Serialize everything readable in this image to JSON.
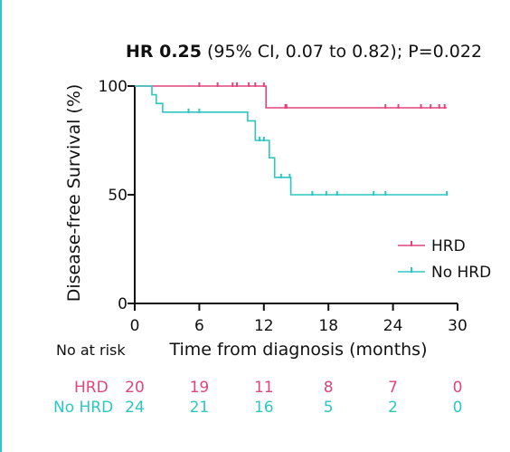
{
  "chart_data": {
    "type": "line",
    "subtype": "kaplan-meier",
    "title": {
      "bold": "HR 0.25",
      "rest": " (95% CI, 0.07 to 0.82); P=0.022"
    },
    "xlabel": "Time from diagnosis (months)",
    "ylabel": "Disease-free Survival (%)",
    "xlim": [
      0,
      30
    ],
    "ylim": [
      0,
      100
    ],
    "x_ticks": [
      0,
      6,
      12,
      18,
      24,
      30
    ],
    "y_ticks": [
      0,
      50,
      100
    ],
    "legend_position": "bottom-right",
    "series": [
      {
        "name": "HRD",
        "color": "#e0457b",
        "steps": [
          [
            0,
            100
          ],
          [
            12.2,
            100
          ],
          [
            12.2,
            90
          ],
          [
            29,
            90
          ]
        ],
        "censored": [
          [
            6,
            100
          ],
          [
            7.7,
            100
          ],
          [
            9.1,
            100
          ],
          [
            9.5,
            100
          ],
          [
            10.6,
            100
          ],
          [
            11.2,
            100
          ],
          [
            12,
            100
          ],
          [
            14,
            90
          ],
          [
            14.1,
            90
          ],
          [
            23.3,
            90
          ],
          [
            24.5,
            90
          ],
          [
            26.6,
            90
          ],
          [
            27.5,
            90
          ],
          [
            28.3,
            90
          ],
          [
            28.8,
            90
          ]
        ]
      },
      {
        "name": "No HRD",
        "color": "#2cc7c2",
        "steps": [
          [
            0,
            100
          ],
          [
            1.6,
            100
          ],
          [
            1.6,
            96
          ],
          [
            2,
            96
          ],
          [
            2,
            92
          ],
          [
            2.6,
            92
          ],
          [
            2.6,
            88
          ],
          [
            10.5,
            88
          ],
          [
            10.5,
            84
          ],
          [
            11.2,
            84
          ],
          [
            11.2,
            75
          ],
          [
            12.5,
            75
          ],
          [
            12.5,
            67
          ],
          [
            13,
            67
          ],
          [
            13,
            58
          ],
          [
            14.5,
            58
          ],
          [
            14.5,
            50
          ],
          [
            29,
            50
          ]
        ],
        "censored": [
          [
            5,
            88
          ],
          [
            6,
            88
          ],
          [
            11.6,
            75
          ],
          [
            12,
            75
          ],
          [
            13.6,
            58
          ],
          [
            14.4,
            58
          ],
          [
            16.5,
            50
          ],
          [
            17.8,
            50
          ],
          [
            18.8,
            50
          ],
          [
            22.2,
            50
          ],
          [
            23.3,
            50
          ],
          [
            29,
            50
          ]
        ]
      }
    ],
    "at_risk": {
      "label": "No at risk",
      "times": [
        0,
        6,
        12,
        18,
        24,
        30
      ],
      "rows": [
        {
          "name": "HRD",
          "color": "#e0457b",
          "values": [
            20,
            19,
            11,
            8,
            7,
            0
          ]
        },
        {
          "name": "No HRD",
          "color": "#2cc7c2",
          "values": [
            24,
            21,
            16,
            5,
            2,
            0
          ]
        }
      ]
    }
  }
}
